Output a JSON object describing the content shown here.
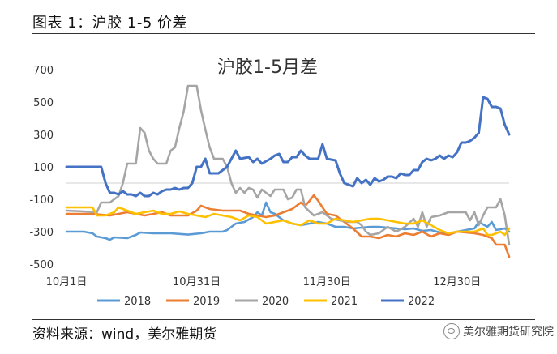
{
  "header": {
    "title": "图表 1：沪胶 1-5 价差"
  },
  "footer": {
    "source": "资料来源：wind，美尔雅期货"
  },
  "watermark": {
    "text": "美尔雅期货研究院",
    "icon": "wechat-icon"
  },
  "chart_data": {
    "type": "line",
    "title": "沪胶1-5月差",
    "xlabel": "",
    "ylabel": "",
    "ylim": [
      -500,
      700
    ],
    "yticks": [
      700,
      500,
      300,
      100,
      -100,
      -300,
      -500
    ],
    "x_tick_labels": [
      {
        "label": "10月1日",
        "day": 0
      },
      {
        "label": "10月31日",
        "day": 30
      },
      {
        "label": "11月30日",
        "day": 60
      },
      {
        "label": "12月30日",
        "day": 90
      }
    ],
    "grid": false,
    "legend": "bottom",
    "series": [
      {
        "name": "2018",
        "color": "#5B9BD5",
        "points": [
          [
            0,
            -300
          ],
          [
            4,
            -300
          ],
          [
            6,
            -310
          ],
          [
            7,
            -330
          ],
          [
            9,
            -340
          ],
          [
            10,
            -350
          ],
          [
            11,
            -335
          ],
          [
            14,
            -340
          ],
          [
            16,
            -320
          ],
          [
            17,
            -305
          ],
          [
            20,
            -310
          ],
          [
            24,
            -310
          ],
          [
            28,
            -318
          ],
          [
            31,
            -310
          ],
          [
            33,
            -300
          ],
          [
            36,
            -300
          ],
          [
            37,
            -290
          ],
          [
            39,
            -250
          ],
          [
            41,
            -240
          ],
          [
            43,
            -210
          ],
          [
            44,
            -180
          ],
          [
            45,
            -200
          ],
          [
            46,
            -120
          ],
          [
            47,
            -180
          ],
          [
            48,
            -190
          ],
          [
            50,
            -230
          ],
          [
            52,
            -250
          ],
          [
            54,
            -260
          ],
          [
            56,
            -250
          ],
          [
            58,
            -240
          ],
          [
            60,
            -250
          ],
          [
            62,
            -270
          ],
          [
            64,
            -270
          ],
          [
            66,
            -280
          ],
          [
            68,
            -275
          ],
          [
            70,
            -270
          ],
          [
            72,
            -270
          ],
          [
            74,
            -275
          ],
          [
            76,
            -280
          ],
          [
            78,
            -285
          ],
          [
            80,
            -280
          ],
          [
            82,
            -295
          ],
          [
            84,
            -290
          ],
          [
            86,
            -305
          ],
          [
            88,
            -310
          ],
          [
            90,
            -300
          ],
          [
            92,
            -290
          ],
          [
            94,
            -280
          ],
          [
            95,
            -240
          ],
          [
            97,
            -270
          ],
          [
            98,
            -240
          ],
          [
            99,
            -290
          ],
          [
            101,
            -280
          ],
          [
            102,
            -300
          ]
        ]
      },
      {
        "name": "2019",
        "color": "#ED7D31",
        "points": [
          [
            0,
            -190
          ],
          [
            6,
            -190
          ],
          [
            10,
            -200
          ],
          [
            14,
            -180
          ],
          [
            18,
            -200
          ],
          [
            20,
            -190
          ],
          [
            22,
            -180
          ],
          [
            24,
            -200
          ],
          [
            28,
            -200
          ],
          [
            30,
            -170
          ],
          [
            31,
            -140
          ],
          [
            33,
            -160
          ],
          [
            36,
            -170
          ],
          [
            40,
            -170
          ],
          [
            42,
            -190
          ],
          [
            44,
            -200
          ],
          [
            46,
            -210
          ],
          [
            48,
            -200
          ],
          [
            50,
            -180
          ],
          [
            52,
            -160
          ],
          [
            54,
            -120
          ],
          [
            55,
            -140
          ],
          [
            56,
            -110
          ],
          [
            57,
            -75
          ],
          [
            58,
            -110
          ],
          [
            59,
            -150
          ],
          [
            60,
            -190
          ],
          [
            62,
            -200
          ],
          [
            64,
            -240
          ],
          [
            66,
            -280
          ],
          [
            68,
            -330
          ],
          [
            70,
            -330
          ],
          [
            72,
            -340
          ],
          [
            74,
            -320
          ],
          [
            76,
            -330
          ],
          [
            78,
            -310
          ],
          [
            80,
            -320
          ],
          [
            82,
            -300
          ],
          [
            84,
            -330
          ],
          [
            86,
            -310
          ],
          [
            88,
            -320
          ],
          [
            90,
            -300
          ],
          [
            92,
            -305
          ],
          [
            94,
            -310
          ],
          [
            96,
            -320
          ],
          [
            98,
            -340
          ],
          [
            99,
            -380
          ],
          [
            101,
            -380
          ],
          [
            102,
            -455
          ]
        ]
      },
      {
        "name": "2020",
        "color": "#A5A5A5",
        "points": [
          [
            0,
            -170
          ],
          [
            4,
            -175
          ],
          [
            7,
            -180
          ],
          [
            8,
            -120
          ],
          [
            10,
            -120
          ],
          [
            12,
            -80
          ],
          [
            13,
            0
          ],
          [
            14,
            120
          ],
          [
            16,
            120
          ],
          [
            17,
            340
          ],
          [
            18,
            310
          ],
          [
            19,
            200
          ],
          [
            20,
            150
          ],
          [
            21,
            120
          ],
          [
            23,
            120
          ],
          [
            24,
            200
          ],
          [
            25,
            220
          ],
          [
            26,
            340
          ],
          [
            27,
            440
          ],
          [
            28,
            600
          ],
          [
            30,
            600
          ],
          [
            31,
            450
          ],
          [
            32,
            330
          ],
          [
            33,
            220
          ],
          [
            34,
            150
          ],
          [
            36,
            150
          ],
          [
            37,
            100
          ],
          [
            38,
            0
          ],
          [
            39,
            -60
          ],
          [
            40,
            -30
          ],
          [
            41,
            -60
          ],
          [
            42,
            -30
          ],
          [
            43,
            -40
          ],
          [
            44,
            -90
          ],
          [
            45,
            -40
          ],
          [
            47,
            -80
          ],
          [
            48,
            -40
          ],
          [
            50,
            -40
          ],
          [
            51,
            -100
          ],
          [
            52,
            -90
          ],
          [
            53,
            -40
          ],
          [
            54,
            -40
          ],
          [
            55,
            -150
          ],
          [
            57,
            -200
          ],
          [
            59,
            -180
          ],
          [
            61,
            -220
          ],
          [
            63,
            -230
          ],
          [
            65,
            -240
          ],
          [
            67,
            -240
          ],
          [
            68,
            -260
          ],
          [
            69,
            -300
          ],
          [
            70,
            -320
          ],
          [
            72,
            -310
          ],
          [
            74,
            -270
          ],
          [
            76,
            -300
          ],
          [
            78,
            -270
          ],
          [
            80,
            -220
          ],
          [
            81,
            -270
          ],
          [
            82,
            -180
          ],
          [
            83,
            -270
          ],
          [
            84,
            -210
          ],
          [
            86,
            -200
          ],
          [
            88,
            -180
          ],
          [
            90,
            -180
          ],
          [
            92,
            -180
          ],
          [
            93,
            -230
          ],
          [
            94,
            -180
          ],
          [
            95,
            -260
          ],
          [
            96,
            -200
          ],
          [
            97,
            -150
          ],
          [
            99,
            -150
          ],
          [
            100,
            -100
          ],
          [
            101,
            -200
          ],
          [
            102,
            -380
          ]
        ]
      },
      {
        "name": "2021",
        "color": "#FFC000",
        "points": [
          [
            0,
            -150
          ],
          [
            6,
            -150
          ],
          [
            7,
            -200
          ],
          [
            9,
            -200
          ],
          [
            11,
            -180
          ],
          [
            12,
            -150
          ],
          [
            14,
            -170
          ],
          [
            16,
            -190
          ],
          [
            18,
            -180
          ],
          [
            20,
            -170
          ],
          [
            22,
            -190
          ],
          [
            24,
            -190
          ],
          [
            26,
            -175
          ],
          [
            28,
            -190
          ],
          [
            30,
            -200
          ],
          [
            32,
            -210
          ],
          [
            34,
            -190
          ],
          [
            36,
            -200
          ],
          [
            38,
            -210
          ],
          [
            40,
            -230
          ],
          [
            42,
            -200
          ],
          [
            44,
            -210
          ],
          [
            46,
            -250
          ],
          [
            48,
            -240
          ],
          [
            50,
            -230
          ],
          [
            52,
            -250
          ],
          [
            54,
            -260
          ],
          [
            56,
            -230
          ],
          [
            58,
            -250
          ],
          [
            60,
            -250
          ],
          [
            62,
            -220
          ],
          [
            64,
            -230
          ],
          [
            66,
            -240
          ],
          [
            68,
            -230
          ],
          [
            70,
            -220
          ],
          [
            72,
            -220
          ],
          [
            74,
            -230
          ],
          [
            76,
            -240
          ],
          [
            78,
            -250
          ],
          [
            80,
            -250
          ],
          [
            82,
            -230
          ],
          [
            84,
            -260
          ],
          [
            86,
            -290
          ],
          [
            88,
            -310
          ],
          [
            90,
            -300
          ],
          [
            92,
            -300
          ],
          [
            94,
            -300
          ],
          [
            96,
            -280
          ],
          [
            97,
            -320
          ],
          [
            98,
            -320
          ],
          [
            100,
            -300
          ],
          [
            101,
            -320
          ],
          [
            102,
            -280
          ]
        ]
      },
      {
        "name": "2022",
        "color": "#4472C4",
        "points": [
          [
            0,
            100
          ],
          [
            8,
            100
          ],
          [
            9,
            0
          ],
          [
            10,
            -60
          ],
          [
            11,
            -60
          ],
          [
            12,
            -70
          ],
          [
            13,
            -50
          ],
          [
            14,
            -70
          ],
          [
            15,
            -70
          ],
          [
            16,
            -80
          ],
          [
            17,
            -60
          ],
          [
            18,
            -80
          ],
          [
            19,
            -80
          ],
          [
            20,
            -60
          ],
          [
            21,
            -70
          ],
          [
            22,
            -50
          ],
          [
            23,
            -40
          ],
          [
            24,
            -40
          ],
          [
            25,
            -30
          ],
          [
            26,
            -40
          ],
          [
            27,
            -30
          ],
          [
            28,
            -30
          ],
          [
            29,
            0
          ],
          [
            30,
            100
          ],
          [
            31,
            100
          ],
          [
            32,
            150
          ],
          [
            33,
            60
          ],
          [
            35,
            60
          ],
          [
            36,
            80
          ],
          [
            37,
            100
          ],
          [
            38,
            150
          ],
          [
            39,
            200
          ],
          [
            40,
            150
          ],
          [
            42,
            160
          ],
          [
            43,
            130
          ],
          [
            44,
            150
          ],
          [
            45,
            120
          ],
          [
            47,
            150
          ],
          [
            48,
            170
          ],
          [
            49,
            180
          ],
          [
            50,
            130
          ],
          [
            51,
            130
          ],
          [
            52,
            160
          ],
          [
            53,
            160
          ],
          [
            54,
            200
          ],
          [
            55,
            170
          ],
          [
            56,
            150
          ],
          [
            58,
            150
          ],
          [
            59,
            240
          ],
          [
            60,
            150
          ],
          [
            62,
            140
          ],
          [
            63,
            60
          ],
          [
            64,
            0
          ],
          [
            66,
            -20
          ],
          [
            67,
            30
          ],
          [
            68,
            0
          ],
          [
            69,
            20
          ],
          [
            70,
            -10
          ],
          [
            71,
            30
          ],
          [
            72,
            10
          ],
          [
            73,
            20
          ],
          [
            74,
            40
          ],
          [
            75,
            40
          ],
          [
            76,
            30
          ],
          [
            77,
            60
          ],
          [
            78,
            50
          ],
          [
            79,
            50
          ],
          [
            80,
            80
          ],
          [
            81,
            80
          ],
          [
            82,
            130
          ],
          [
            83,
            150
          ],
          [
            84,
            140
          ],
          [
            85,
            150
          ],
          [
            86,
            170
          ],
          [
            87,
            150
          ],
          [
            88,
            170
          ],
          [
            89,
            160
          ],
          [
            90,
            190
          ],
          [
            91,
            250
          ],
          [
            92,
            250
          ],
          [
            93,
            260
          ],
          [
            94,
            280
          ],
          [
            95,
            310
          ],
          [
            96,
            530
          ],
          [
            97,
            520
          ],
          [
            98,
            470
          ],
          [
            99,
            470
          ],
          [
            100,
            460
          ],
          [
            101,
            360
          ],
          [
            102,
            300
          ]
        ]
      }
    ]
  }
}
